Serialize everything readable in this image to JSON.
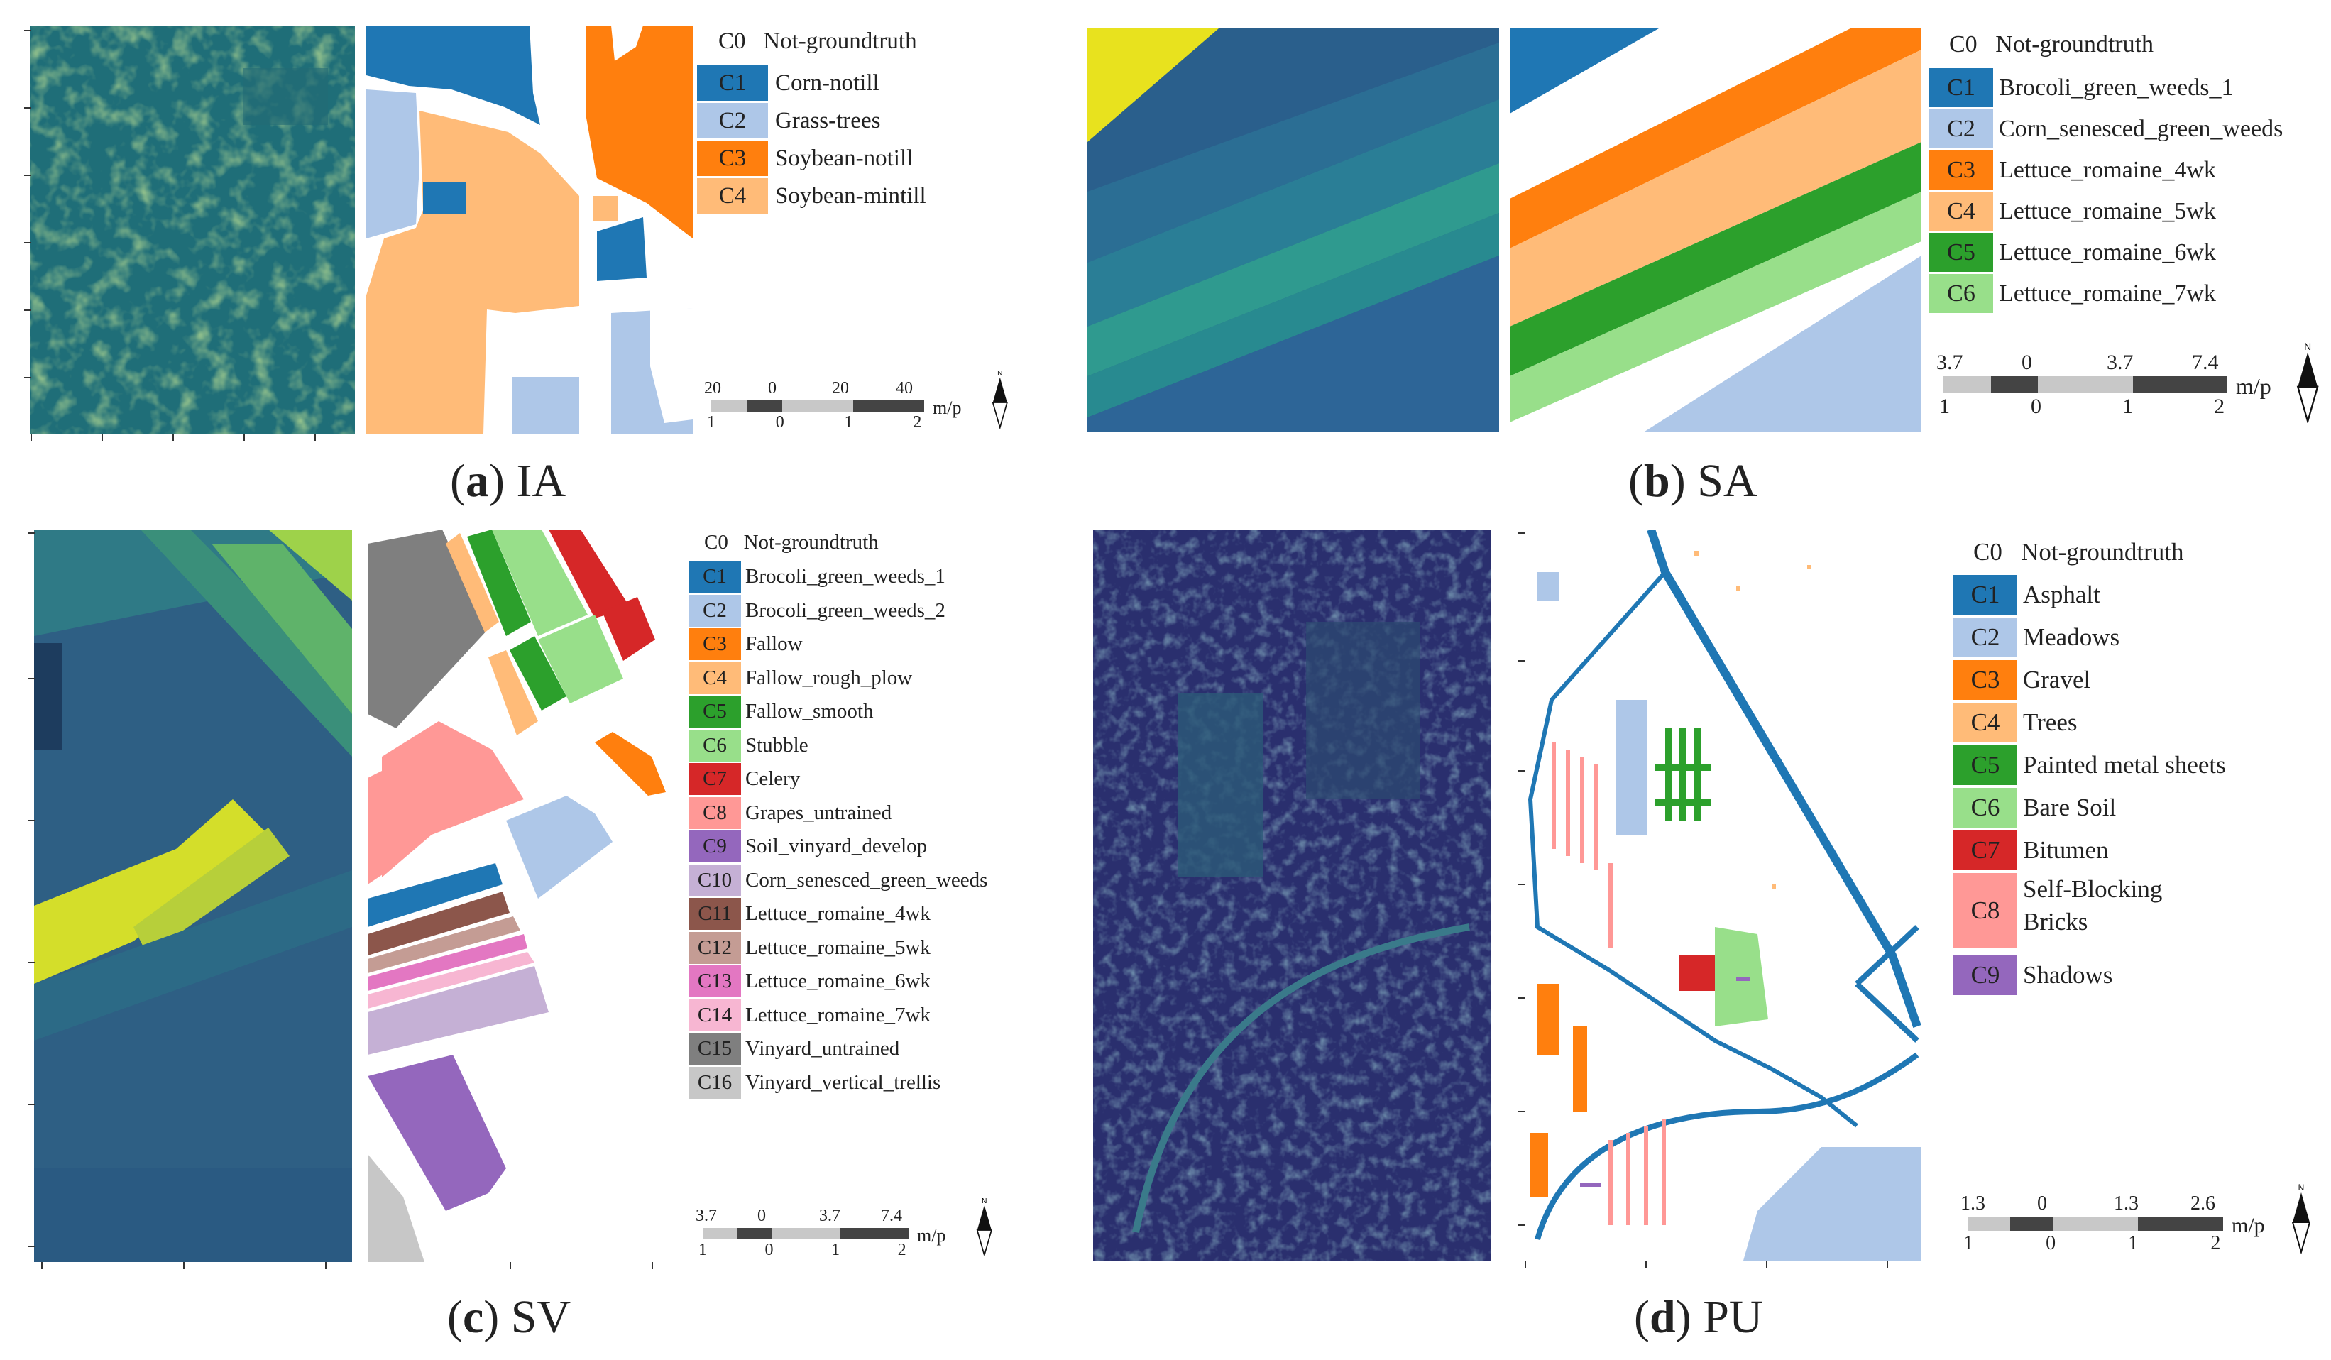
{
  "panels": {
    "ia": {
      "caption_letter": "a",
      "caption_name": "IA",
      "legend_header_code": "C0",
      "legend_header_label": "Not-groundtruth",
      "classes": [
        {
          "code": "C1",
          "label": "Corn-notill",
          "color": "#1f77b4"
        },
        {
          "code": "C2",
          "label": "Grass-trees",
          "color": "#aec7e8"
        },
        {
          "code": "C3",
          "label": "Soybean-notill",
          "color": "#ff7f0e"
        },
        {
          "code": "C4",
          "label": "Soybean-mintill",
          "color": "#ffbb78"
        }
      ],
      "scale": {
        "top": [
          "20",
          "0",
          "20",
          "40"
        ],
        "bottom": [
          "1",
          "0",
          "1",
          "2"
        ],
        "unit": "m/p",
        "north": "N"
      }
    },
    "sa": {
      "caption_letter": "b",
      "caption_name": "SA",
      "legend_header_code": "C0",
      "legend_header_label": "Not-groundtruth",
      "classes": [
        {
          "code": "C1",
          "label": "Brocoli_green_weeds_1",
          "color": "#1f77b4"
        },
        {
          "code": "C2",
          "label": "Corn_senesced_green_weeds",
          "color": "#aec7e8"
        },
        {
          "code": "C3",
          "label": "Lettuce_romaine_4wk",
          "color": "#ff7f0e"
        },
        {
          "code": "C4",
          "label": "Lettuce_romaine_5wk",
          "color": "#ffbb78"
        },
        {
          "code": "C5",
          "label": "Lettuce_romaine_6wk",
          "color": "#2ca02c"
        },
        {
          "code": "C6",
          "label": "Lettuce_romaine_7wk",
          "color": "#98df8a"
        }
      ],
      "scale": {
        "top": [
          "3.7",
          "0",
          "3.7",
          "7.4"
        ],
        "bottom": [
          "1",
          "0",
          "1",
          "2"
        ],
        "unit": "m/p",
        "north": "N"
      }
    },
    "sv": {
      "caption_letter": "c",
      "caption_name": "SV",
      "legend_header_code": "C0",
      "legend_header_label": "Not-groundtruth",
      "classes": [
        {
          "code": "C1",
          "label": "Brocoli_green_weeds_1",
          "color": "#1f77b4"
        },
        {
          "code": "C2",
          "label": "Brocoli_green_weeds_2",
          "color": "#aec7e8"
        },
        {
          "code": "C3",
          "label": "Fallow",
          "color": "#ff7f0e"
        },
        {
          "code": "C4",
          "label": "Fallow_rough_plow",
          "color": "#ffbb78"
        },
        {
          "code": "C5",
          "label": "Fallow_smooth",
          "color": "#2ca02c"
        },
        {
          "code": "C6",
          "label": "Stubble",
          "color": "#98df8a"
        },
        {
          "code": "C7",
          "label": "Celery",
          "color": "#d62728"
        },
        {
          "code": "C8",
          "label": "Grapes_untrained",
          "color": "#ff9896"
        },
        {
          "code": "C9",
          "label": "Soil_vinyard_develop",
          "color": "#9467bd"
        },
        {
          "code": "C10",
          "label": "Corn_senesced_green_weeds",
          "color": "#c5b0d5"
        },
        {
          "code": "C11",
          "label": "Lettuce_romaine_4wk",
          "color": "#8c564b"
        },
        {
          "code": "C12",
          "label": "Lettuce_romaine_5wk",
          "color": "#c49c94"
        },
        {
          "code": "C13",
          "label": "Lettuce_romaine_6wk",
          "color": "#e377c2"
        },
        {
          "code": "C14",
          "label": "Lettuce_romaine_7wk",
          "color": "#f7b6d2"
        },
        {
          "code": "C15",
          "label": "Vinyard_untrained",
          "color": "#7f7f7f"
        },
        {
          "code": "C16",
          "label": "Vinyard_vertical_trellis",
          "color": "#c7c7c7"
        }
      ],
      "scale": {
        "top": [
          "3.7",
          "0",
          "3.7",
          "7.4"
        ],
        "bottom": [
          "1",
          "0",
          "1",
          "2"
        ],
        "unit": "m/p",
        "north": "N"
      }
    },
    "pu": {
      "caption_letter": "d",
      "caption_name": "PU",
      "legend_header_code": "C0",
      "legend_header_label": "Not-groundtruth",
      "classes": [
        {
          "code": "C1",
          "label": "Asphalt",
          "color": "#1f77b4"
        },
        {
          "code": "C2",
          "label": "Meadows",
          "color": "#aec7e8"
        },
        {
          "code": "C3",
          "label": "Gravel",
          "color": "#ff7f0e"
        },
        {
          "code": "C4",
          "label": "Trees",
          "color": "#ffbb78"
        },
        {
          "code": "C5",
          "label": "Painted metal sheets",
          "color": "#2ca02c"
        },
        {
          "code": "C6",
          "label": "Bare Soil",
          "color": "#98df8a"
        },
        {
          "code": "C7",
          "label": "Bitumen",
          "color": "#d62728"
        },
        {
          "code": "C8",
          "label": "Self-Blocking Bricks",
          "color": "#ff9896"
        },
        {
          "code": "C9",
          "label": "Shadows",
          "color": "#9467bd"
        }
      ],
      "scale": {
        "top": [
          "1.3",
          "0",
          "1.3",
          "2.6"
        ],
        "bottom": [
          "1",
          "0",
          "1",
          "2"
        ],
        "unit": "m/p",
        "north": "N"
      }
    }
  }
}
